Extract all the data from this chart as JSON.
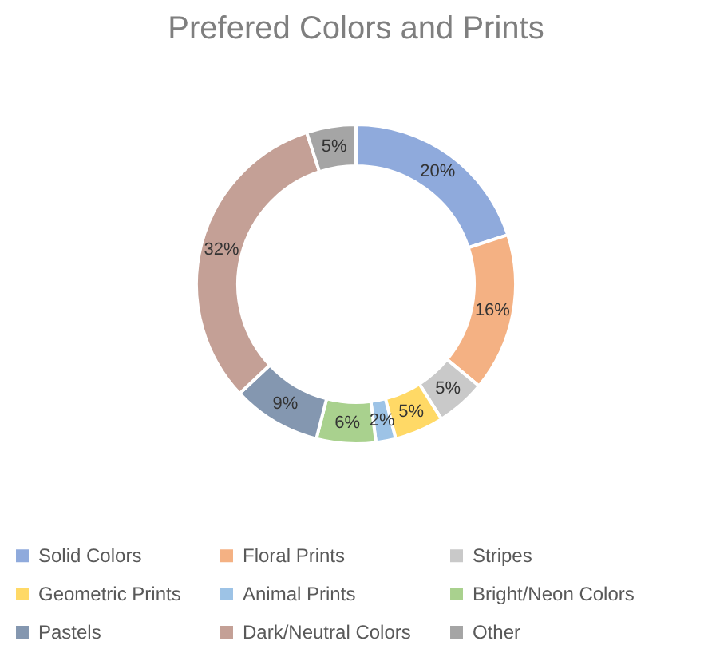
{
  "chart_data": {
    "type": "donut",
    "title": "Prefered Colors and Prints",
    "categories": [
      "Solid Colors",
      "Floral Prints",
      "Stripes",
      "Geometric Prints",
      "Animal Prints",
      "Bright/Neon Colors",
      "Pastels",
      "Dark/Neutral Colors",
      "Other"
    ],
    "values": [
      20,
      16,
      5,
      5,
      2,
      6,
      9,
      32,
      5
    ],
    "value_labels": [
      "20%",
      "16%",
      "5%",
      "5%",
      "2%",
      "6%",
      "9%",
      "32%",
      "5%"
    ],
    "colors": [
      "#8faadc",
      "#f4b183",
      "#c9c9c9",
      "#ffd966",
      "#9dc3e6",
      "#a9d18e",
      "#8497b0",
      "#c4a096",
      "#a5a5a5"
    ],
    "legend": "bottom"
  }
}
